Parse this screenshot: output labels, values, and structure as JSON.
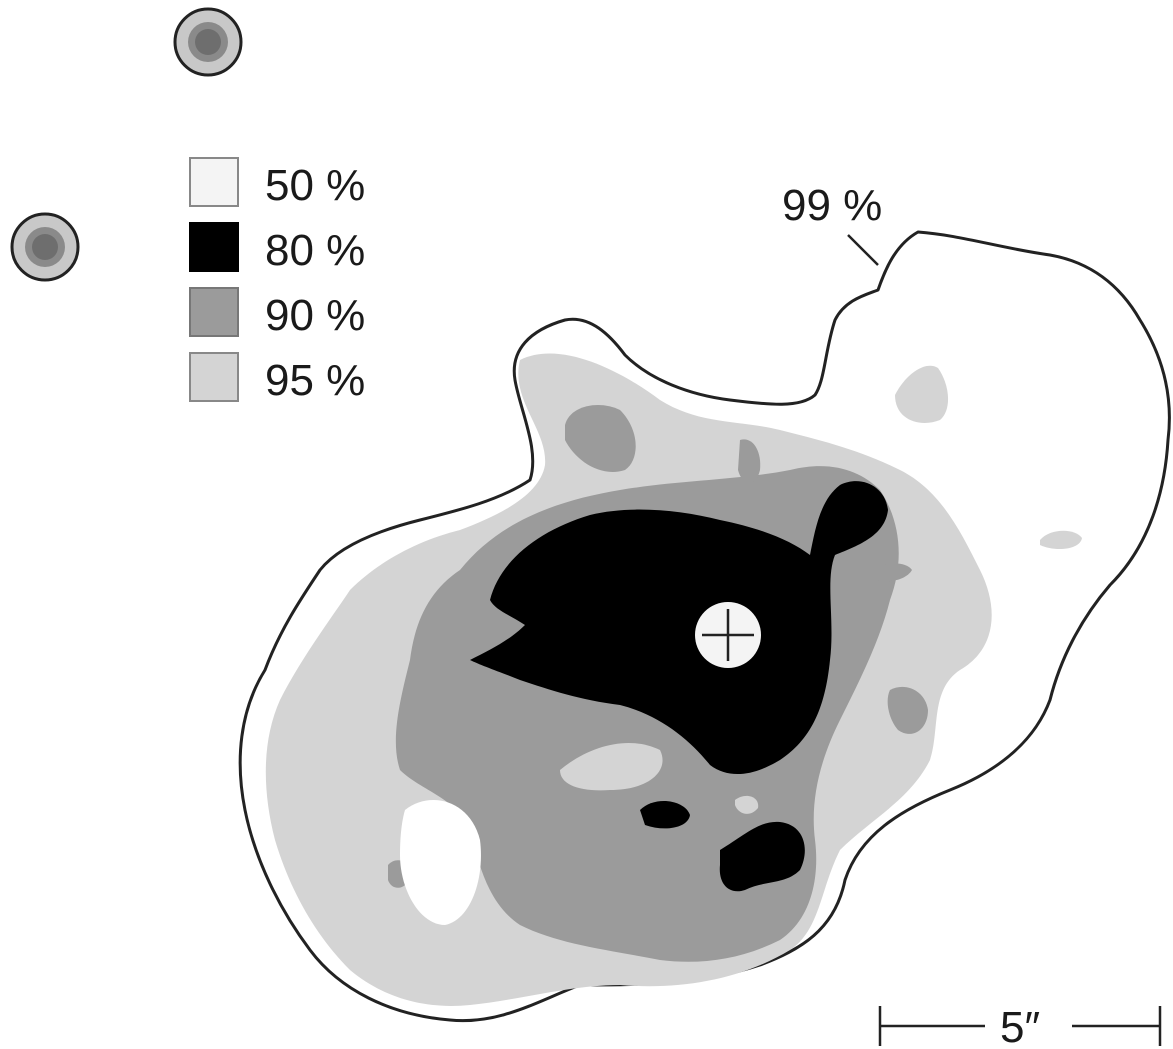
{
  "legend": {
    "items": [
      {
        "label": "50 %",
        "color": "#f4f4f4"
      },
      {
        "label": "80 %",
        "color": "#000000"
      },
      {
        "label": "90 %",
        "color": "#9b9b9b"
      },
      {
        "label": "95 %",
        "color": "#d4d4d4"
      }
    ]
  },
  "outer_contour": {
    "label": "99 %",
    "stroke": "#222222"
  },
  "scale_bar": {
    "label": "5″"
  },
  "colors": {
    "background": "#ffffff",
    "level_95": "#d4d4d4",
    "level_90": "#9b9b9b",
    "level_80": "#000000",
    "level_50": "#f4f4f4",
    "star_ring": "#c8c8c8",
    "star_core": "#777777"
  },
  "icons": [
    "star-icon",
    "centroid-cross-icon"
  ]
}
